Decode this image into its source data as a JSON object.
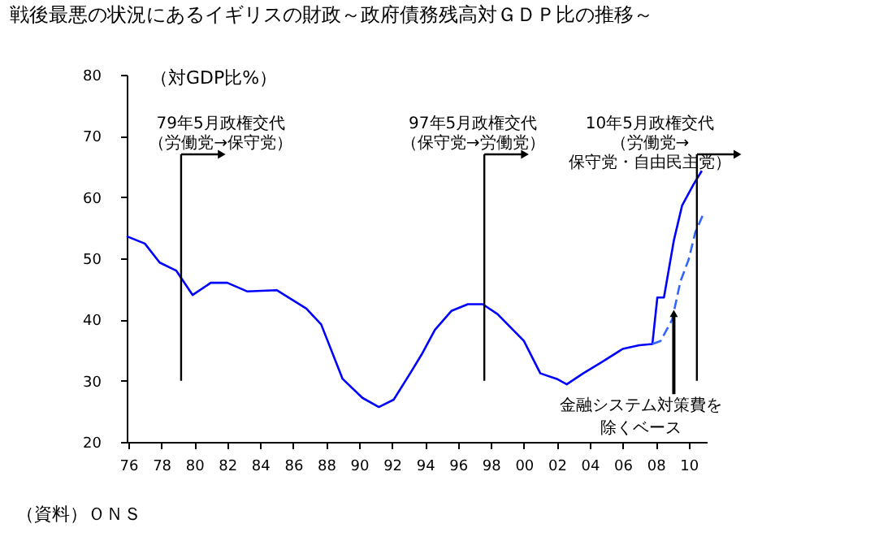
{
  "chart_data": {
    "type": "line",
    "title": "戦後最悪の状況にあるイギリスの財政～政府債務残高対ＧＤＰ比の推移～",
    "ylabel": "（対GDP比%）",
    "xlim": [
      1975.9,
      2011.1
    ],
    "ylim": [
      20,
      80
    ],
    "xticks": [
      {
        "value": 1976,
        "label": "76"
      },
      {
        "value": 1978,
        "label": "78"
      },
      {
        "value": 1980,
        "label": "80"
      },
      {
        "value": 1982,
        "label": "82"
      },
      {
        "value": 1984,
        "label": "84"
      },
      {
        "value": 1986,
        "label": "86"
      },
      {
        "value": 1988,
        "label": "88"
      },
      {
        "value": 1990,
        "label": "90"
      },
      {
        "value": 1992,
        "label": "92"
      },
      {
        "value": 1994,
        "label": "94"
      },
      {
        "value": 1996,
        "label": "96"
      },
      {
        "value": 1998,
        "label": "98"
      },
      {
        "value": 2000,
        "label": "00"
      },
      {
        "value": 2002,
        "label": "02"
      },
      {
        "value": 2004,
        "label": "04"
      },
      {
        "value": 2006,
        "label": "06"
      },
      {
        "value": 2008,
        "label": "08"
      },
      {
        "value": 2010,
        "label": "10"
      }
    ],
    "yticks": [
      20,
      30,
      40,
      50,
      60,
      70,
      80
    ],
    "grid": false,
    "series": [
      {
        "color": "#0000ff",
        "line_style": "solid",
        "x": [
          1975.9,
          1977.0,
          1977.9,
          1978.9,
          1979.9,
          1981.0,
          1982.0,
          1983.2,
          1985.0,
          1986.8,
          1987.7,
          1989.0,
          1990.2,
          1991.2,
          1992.1,
          1993.1,
          1993.8,
          1994.6,
          1995.6,
          1996.6,
          1997.5,
          1998.4,
          1999.2,
          2000.0,
          2001.0,
          2002.0,
          2002.6,
          2003.6,
          2004.7,
          2006.0,
          2007.0,
          2007.8,
          2008.1,
          2008.5,
          2009.1,
          2009.6,
          2010.3,
          2010.8
        ],
        "values": [
          53.6,
          52.4,
          49.3,
          48.0,
          44.0,
          46.0,
          46.0,
          44.6,
          44.8,
          41.8,
          39.2,
          30.3,
          27.2,
          25.7,
          26.9,
          31.2,
          34.3,
          38.3,
          41.4,
          42.5,
          42.5,
          40.9,
          38.7,
          36.5,
          31.2,
          30.3,
          29.4,
          31.2,
          33.0,
          35.2,
          35.8,
          36.0,
          43.6,
          43.6,
          52.9,
          58.6,
          62.1,
          64.3
        ]
      },
      {
        "color": "#3366ff",
        "line_style": "dashed",
        "x": [
          2007.8,
          2008.3,
          2009.0,
          2009.5,
          2010.0,
          2010.4,
          2010.9
        ],
        "values": [
          36.0,
          36.5,
          40.0,
          46.2,
          49.8,
          54.2,
          57.3
        ]
      }
    ],
    "ref_lines": [
      {
        "axis": "x",
        "value": 1979.2,
        "label": "79年5月政権交代（労働党→保守党）"
      },
      {
        "axis": "x",
        "value": 1997.6,
        "label": "97年5月政権交代（保守党→労働党）"
      },
      {
        "axis": "x",
        "value": 2010.5,
        "label": "10年5月政権交代（労働党→保守党・自由民主党）"
      }
    ],
    "annotations": [
      {
        "text": "金融システム対策費を除くベース",
        "x": 2009.1,
        "y": 41
      },
      "（資料）ＯＮＳ"
    ]
  }
}
